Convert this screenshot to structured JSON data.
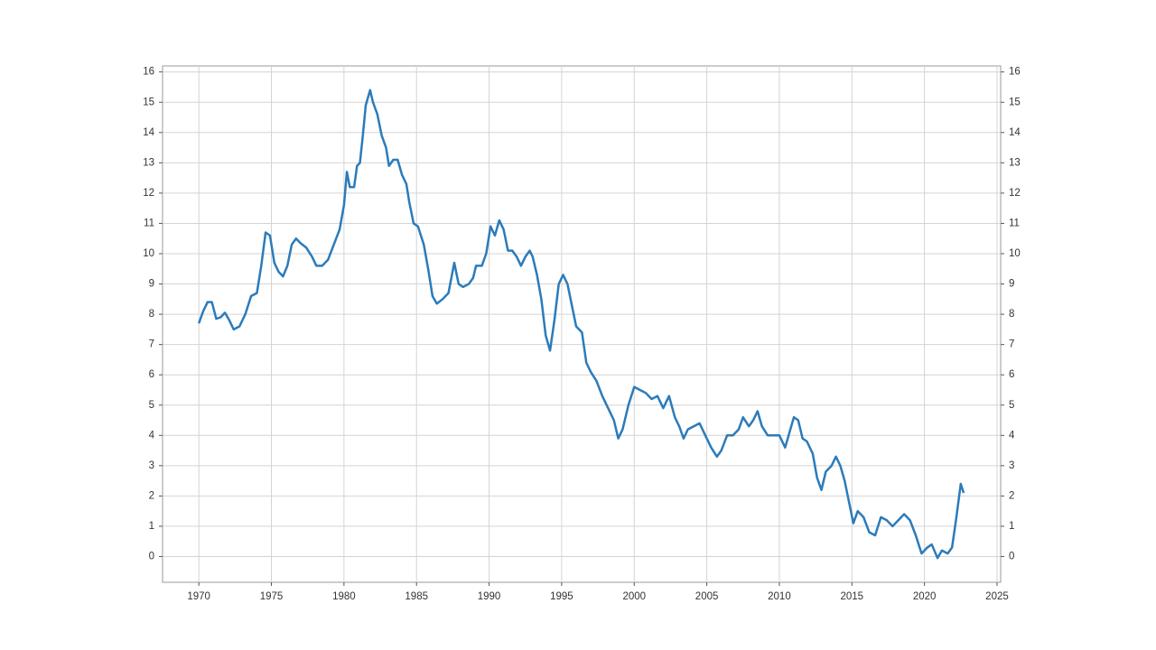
{
  "chart_data": {
    "type": "line",
    "x": [
      1970.0,
      1970.3,
      1970.6,
      1970.9,
      1971.2,
      1971.5,
      1971.8,
      1972.1,
      1972.4,
      1972.8,
      1973.2,
      1973.6,
      1974.0,
      1974.3,
      1974.6,
      1974.9,
      1975.2,
      1975.5,
      1975.8,
      1976.1,
      1976.4,
      1976.7,
      1977.0,
      1977.4,
      1977.8,
      1978.1,
      1978.5,
      1978.9,
      1979.3,
      1979.7,
      1980.0,
      1980.2,
      1980.4,
      1980.7,
      1980.9,
      1981.1,
      1981.3,
      1981.5,
      1981.8,
      1982.0,
      1982.3,
      1982.6,
      1982.9,
      1983.1,
      1983.4,
      1983.7,
      1984.0,
      1984.3,
      1984.5,
      1984.8,
      1985.1,
      1985.5,
      1985.8,
      1986.1,
      1986.4,
      1986.8,
      1987.2,
      1987.6,
      1987.9,
      1988.2,
      1988.6,
      1988.9,
      1989.1,
      1989.5,
      1989.8,
      1990.1,
      1990.4,
      1990.7,
      1991.0,
      1991.3,
      1991.6,
      1991.9,
      1992.2,
      1992.5,
      1992.8,
      1993.0,
      1993.3,
      1993.6,
      1993.9,
      1994.2,
      1994.5,
      1994.8,
      1995.1,
      1995.4,
      1995.7,
      1996.0,
      1996.4,
      1996.7,
      1997.0,
      1997.4,
      1997.8,
      1998.2,
      1998.6,
      1998.9,
      1999.2,
      1999.6,
      2000.0,
      2000.4,
      2000.8,
      2001.2,
      2001.6,
      2002.0,
      2002.4,
      2002.8,
      2003.1,
      2003.4,
      2003.7,
      2004.1,
      2004.5,
      2004.9,
      2005.3,
      2005.7,
      2006.0,
      2006.4,
      2006.8,
      2007.2,
      2007.5,
      2007.9,
      2008.2,
      2008.5,
      2008.8,
      2009.2,
      2009.6,
      2010.0,
      2010.4,
      2010.7,
      2011.0,
      2011.3,
      2011.6,
      2011.9,
      2012.3,
      2012.6,
      2012.9,
      2013.2,
      2013.6,
      2013.9,
      2014.2,
      2014.5,
      2014.8,
      2015.1,
      2015.4,
      2015.8,
      2016.2,
      2016.6,
      2017.0,
      2017.4,
      2017.8,
      2018.2,
      2018.6,
      2019.0,
      2019.4,
      2019.8,
      2020.2,
      2020.5,
      2020.9,
      2021.2,
      2021.6,
      2021.9,
      2022.2,
      2022.5,
      2022.7
    ],
    "values": [
      7.7,
      8.1,
      8.4,
      8.4,
      7.85,
      7.9,
      8.05,
      7.8,
      7.5,
      7.6,
      8.0,
      8.6,
      8.7,
      9.6,
      10.7,
      10.6,
      9.7,
      9.4,
      9.25,
      9.6,
      10.3,
      10.5,
      10.35,
      10.2,
      9.9,
      9.6,
      9.6,
      9.8,
      10.3,
      10.8,
      11.6,
      12.7,
      12.2,
      12.2,
      12.9,
      13.0,
      13.9,
      14.9,
      15.4,
      15.0,
      14.6,
      13.9,
      13.5,
      12.9,
      13.1,
      13.1,
      12.6,
      12.3,
      11.7,
      11.0,
      10.9,
      10.3,
      9.5,
      8.6,
      8.35,
      8.5,
      8.7,
      9.7,
      9.0,
      8.9,
      9.0,
      9.2,
      9.6,
      9.6,
      10.0,
      10.9,
      10.6,
      11.1,
      10.8,
      10.1,
      10.1,
      9.9,
      9.6,
      9.9,
      10.1,
      9.9,
      9.3,
      8.5,
      7.3,
      6.8,
      7.8,
      9.0,
      9.3,
      9.0,
      8.3,
      7.6,
      7.4,
      6.4,
      6.1,
      5.8,
      5.3,
      4.9,
      4.5,
      3.9,
      4.2,
      5.0,
      5.6,
      5.5,
      5.4,
      5.2,
      5.3,
      4.9,
      5.3,
      4.6,
      4.3,
      3.9,
      4.2,
      4.3,
      4.4,
      4.0,
      3.6,
      3.3,
      3.5,
      4.0,
      4.0,
      4.2,
      4.6,
      4.3,
      4.5,
      4.8,
      4.3,
      4.0,
      4.0,
      4.0,
      3.6,
      4.1,
      4.6,
      4.5,
      3.9,
      3.8,
      3.4,
      2.6,
      2.2,
      2.8,
      3.0,
      3.3,
      3.0,
      2.5,
      1.8,
      1.1,
      1.5,
      1.3,
      0.8,
      0.7,
      1.3,
      1.2,
      1.0,
      1.2,
      1.4,
      1.2,
      0.7,
      0.1,
      0.3,
      0.4,
      -0.05,
      0.2,
      0.1,
      0.3,
      1.3,
      2.4,
      2.1
    ],
    "color": "#2b7bba",
    "xlim": [
      1967.5,
      2025.25
    ],
    "xticks": [
      1970,
      1975,
      1980,
      1985,
      1990,
      1995,
      2000,
      2005,
      2010,
      2015,
      2020,
      2025
    ],
    "ylim": [
      -0.85,
      16.2
    ],
    "yticks": [
      0,
      1,
      2,
      3,
      4,
      5,
      6,
      7,
      8,
      9,
      10,
      11,
      12,
      13,
      14,
      15,
      16
    ],
    "y2lim": [
      -0.85,
      16.2
    ],
    "y2ticks": [
      0,
      1,
      2,
      3,
      4,
      5,
      6,
      7,
      8,
      9,
      10,
      11,
      12,
      13,
      14,
      15,
      16
    ],
    "grid": true
  }
}
